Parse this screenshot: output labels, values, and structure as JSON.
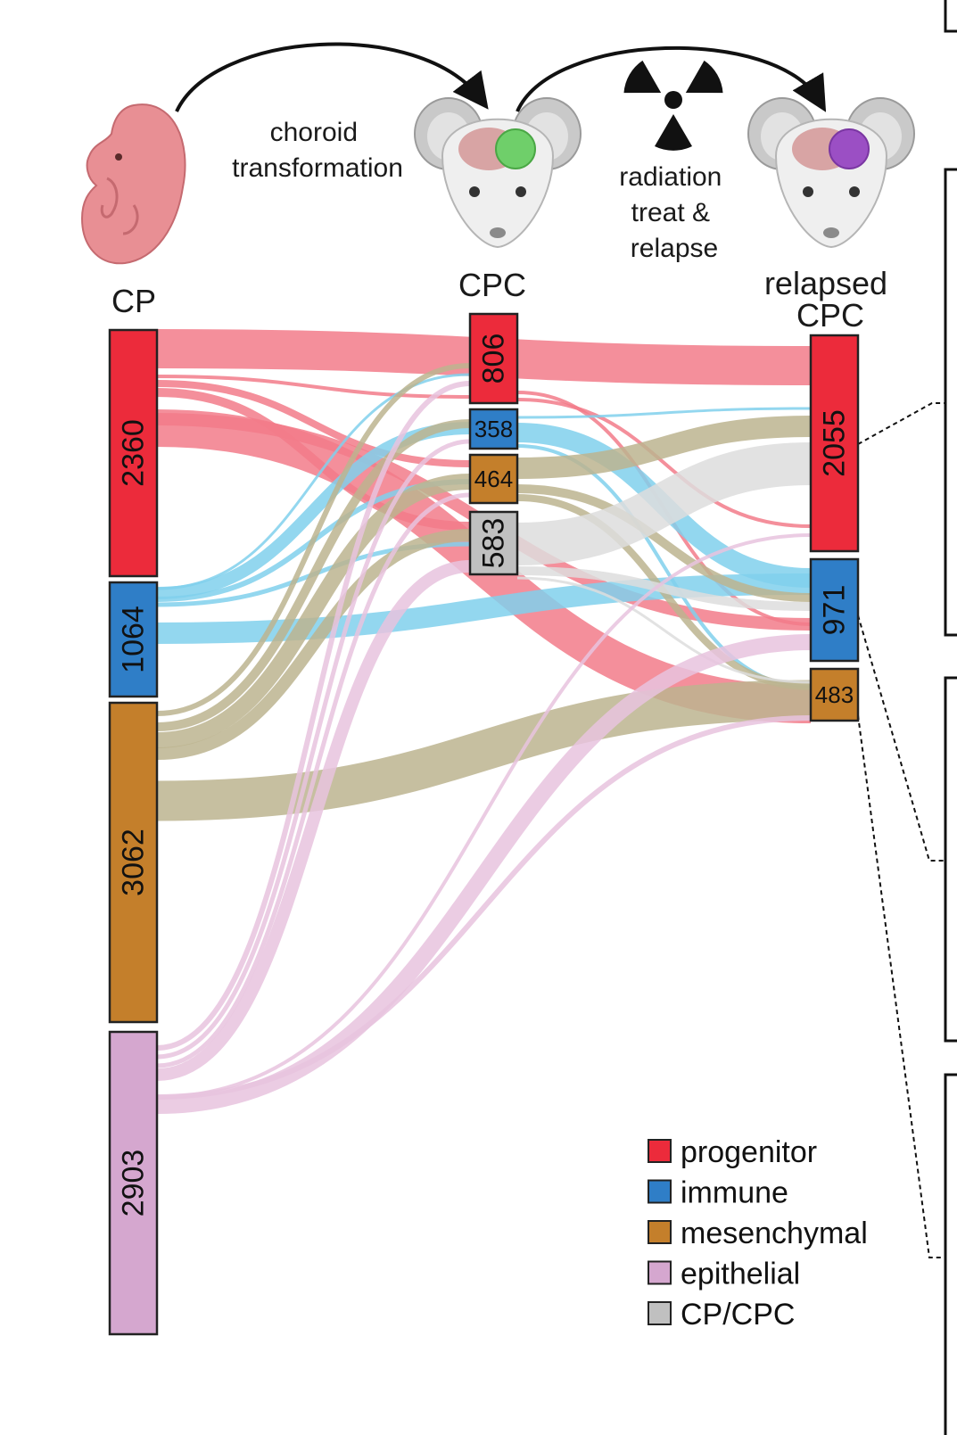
{
  "steps": {
    "step1": [
      "choroid",
      "transformation"
    ],
    "step2": [
      "radiation",
      "treat &",
      "relapse"
    ]
  },
  "columns": {
    "cp": "CP",
    "cpc": "CPC",
    "relapsed": [
      "relapsed",
      "CPC"
    ]
  },
  "categories": [
    {
      "key": "progenitor",
      "label": "progenitor",
      "color": "#ec2b3b",
      "flow_color": "#f27b8a"
    },
    {
      "key": "immune",
      "label": "immune",
      "color": "#2f7ec7",
      "flow_color": "#80d0ec"
    },
    {
      "key": "mesenchymal",
      "label": "mesenchymal",
      "color": "#c47f2b",
      "flow_color": "#bcb48f"
    },
    {
      "key": "epithelial",
      "label": "epithelial",
      "color": "#d5a7cf",
      "flow_color": "#e8c3de"
    },
    {
      "key": "cpcpc",
      "label": "CP/CPC",
      "color": "#c0c0c0",
      "flow_color": "#dddddd"
    }
  ],
  "nodes": {
    "cp": [
      {
        "cat": "progenitor",
        "value": "2360"
      },
      {
        "cat": "immune",
        "value": "1064"
      },
      {
        "cat": "mesenchymal",
        "value": "3062"
      },
      {
        "cat": "epithelial",
        "value": "2903"
      }
    ],
    "cpc": [
      {
        "cat": "progenitor",
        "value": "806"
      },
      {
        "cat": "immune",
        "value": "358"
      },
      {
        "cat": "mesenchymal",
        "value": "464"
      },
      {
        "cat": "cpcpc",
        "value": "583"
      }
    ],
    "relapsed": [
      {
        "cat": "progenitor",
        "value": "2055"
      },
      {
        "cat": "immune",
        "value": "971"
      },
      {
        "cat": "mesenchymal",
        "value": "483"
      }
    ]
  },
  "icons": {
    "embryo": "embryo-icon",
    "mouse_cpc": "mouse-green-tumor-icon",
    "mouse_relapsed": "mouse-purple-tumor-icon",
    "radiation": "radiation-icon"
  }
}
